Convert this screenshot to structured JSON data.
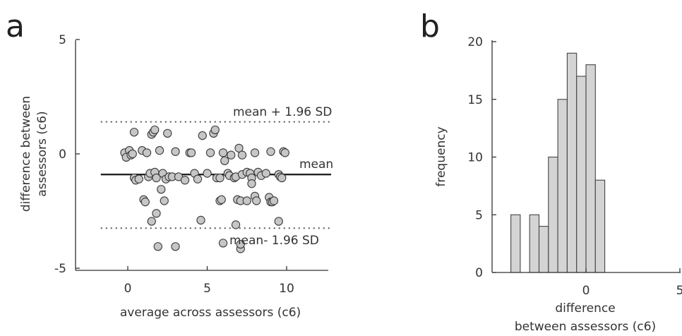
{
  "panels": {
    "a": {
      "letter": "a"
    },
    "b": {
      "letter": "b"
    }
  },
  "chart_data": [
    {
      "panel": "a",
      "type": "scatter",
      "xlabel": "average across assessors (c6)",
      "ylabel_line1": "difference between",
      "ylabel_line2": "assessors (c6)",
      "xlim": [
        -3,
        13
      ],
      "ylim": [
        -5,
        5
      ],
      "xticks": [
        0,
        5,
        10
      ],
      "yticks": [
        -5,
        0,
        5
      ],
      "xtick_labels": [
        "0",
        "5",
        "10"
      ],
      "ytick_labels": [
        "-5",
        "0",
        "5"
      ],
      "mean": -0.9,
      "upper_limit": 1.4,
      "lower_limit": -3.25,
      "lines_x": [
        -1.7,
        12.8
      ],
      "annotations": {
        "upper": "mean + 1.96 SD",
        "mean": "mean",
        "lower": "mean- 1.96 SD"
      },
      "marker_color": "#c6c6c6",
      "line_color": "#222222",
      "points": [
        [
          0,
          0
        ],
        [
          -0.2,
          0.05
        ],
        [
          -0.1,
          -0.15
        ],
        [
          0.1,
          0.15
        ],
        [
          0.2,
          -0.05
        ],
        [
          0.3,
          0
        ],
        [
          0.4,
          -1.05
        ],
        [
          0.5,
          -1.15
        ],
        [
          0.4,
          0.95
        ],
        [
          0.7,
          -1.1
        ],
        [
          0.9,
          0.15
        ],
        [
          1.0,
          -2.0
        ],
        [
          1.1,
          -2.1
        ],
        [
          1.2,
          0.05
        ],
        [
          1.3,
          -1.0
        ],
        [
          1.4,
          -0.85
        ],
        [
          1.5,
          -2.95
        ],
        [
          1.5,
          0.85
        ],
        [
          1.6,
          0.95
        ],
        [
          1.7,
          1.05
        ],
        [
          1.7,
          -0.8
        ],
        [
          1.8,
          -2.6
        ],
        [
          1.8,
          -1.05
        ],
        [
          1.9,
          -4.05
        ],
        [
          2.0,
          0.15
        ],
        [
          2.1,
          -1.55
        ],
        [
          2.2,
          -0.85
        ],
        [
          2.3,
          -2.05
        ],
        [
          2.4,
          -1.1
        ],
        [
          2.5,
          0.9
        ],
        [
          2.6,
          -1.0
        ],
        [
          2.8,
          -1.0
        ],
        [
          3.0,
          -4.05
        ],
        [
          3.0,
          0.1
        ],
        [
          3.2,
          -1.0
        ],
        [
          3.6,
          -1.15
        ],
        [
          3.9,
          0.05
        ],
        [
          4.0,
          0.05
        ],
        [
          4.2,
          -0.85
        ],
        [
          4.4,
          -1.1
        ],
        [
          4.6,
          -2.9
        ],
        [
          4.7,
          0.8
        ],
        [
          5.0,
          -0.85
        ],
        [
          5.2,
          0.05
        ],
        [
          5.4,
          0.9
        ],
        [
          5.5,
          1.05
        ],
        [
          5.6,
          -1.05
        ],
        [
          5.8,
          -2.05
        ],
        [
          5.8,
          -1.05
        ],
        [
          5.9,
          -2.0
        ],
        [
          6.0,
          -3.9
        ],
        [
          6.0,
          0.05
        ],
        [
          6.1,
          -0.3
        ],
        [
          6.3,
          -0.85
        ],
        [
          6.4,
          -0.95
        ],
        [
          6.5,
          -0.05
        ],
        [
          6.7,
          -1.05
        ],
        [
          6.8,
          -3.1
        ],
        [
          6.8,
          -1.0
        ],
        [
          6.9,
          -2.0
        ],
        [
          7.0,
          0.25
        ],
        [
          7.1,
          -4.15
        ],
        [
          7.1,
          -3.95
        ],
        [
          7.1,
          -2.05
        ],
        [
          7.2,
          -0.05
        ],
        [
          7.2,
          -0.9
        ],
        [
          7.5,
          -2.05
        ],
        [
          7.5,
          -0.8
        ],
        [
          7.7,
          -0.85
        ],
        [
          7.8,
          -1.05
        ],
        [
          7.8,
          -1.3
        ],
        [
          8.0,
          -1.85
        ],
        [
          8.0,
          0.05
        ],
        [
          8.1,
          -2.05
        ],
        [
          8.2,
          -0.8
        ],
        [
          8.4,
          -0.95
        ],
        [
          8.7,
          -0.85
        ],
        [
          8.9,
          -1.9
        ],
        [
          9.0,
          0.1
        ],
        [
          9.0,
          -2.1
        ],
        [
          9.1,
          -2.1
        ],
        [
          9.2,
          -2.05
        ],
        [
          9.5,
          -0.9
        ],
        [
          9.5,
          -2.95
        ],
        [
          9.6,
          -1.0
        ],
        [
          9.7,
          -1.05
        ],
        [
          9.8,
          0.1
        ],
        [
          9.9,
          0.05
        ]
      ]
    },
    {
      "panel": "b",
      "type": "bar",
      "xlabel_line1": "difference",
      "xlabel_line2": "between assessors (c6)",
      "ylabel": "frequency",
      "xlim": [
        -4.5,
        5
      ],
      "ylim": [
        0,
        20
      ],
      "xticks": [
        0,
        5
      ],
      "yticks": [
        0,
        5,
        10,
        15,
        20
      ],
      "xtick_labels": [
        "0",
        "5"
      ],
      "ytick_labels": [
        "0",
        "5",
        "10",
        "15",
        "20"
      ],
      "bin_width": 0.5,
      "bar_color": "#d4d4d4",
      "bins": [
        {
          "left": -4.0,
          "count": 5
        },
        {
          "left": -3.5,
          "count": 0
        },
        {
          "left": -3.0,
          "count": 5
        },
        {
          "left": -2.5,
          "count": 4
        },
        {
          "left": -2.0,
          "count": 10
        },
        {
          "left": -1.5,
          "count": 15
        },
        {
          "left": -1.0,
          "count": 19
        },
        {
          "left": -0.5,
          "count": 17
        },
        {
          "left": 0.0,
          "count": 18
        },
        {
          "left": 0.5,
          "count": 8
        }
      ]
    }
  ]
}
